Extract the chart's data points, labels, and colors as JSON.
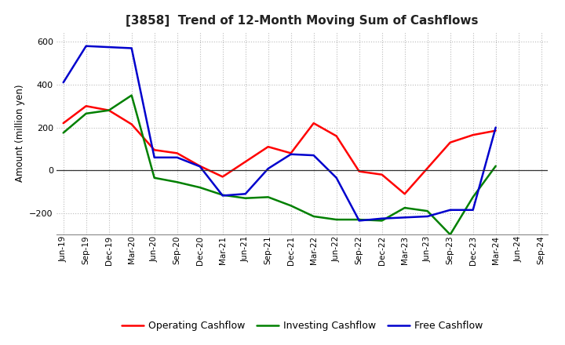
{
  "title": "[3858]  Trend of 12-Month Moving Sum of Cashflows",
  "ylabel": "Amount (million yen)",
  "ylim": [
    -300,
    650
  ],
  "yticks": [
    -200,
    0,
    200,
    400,
    600
  ],
  "background_color": "#ffffff",
  "grid_color": "#bbbbbb",
  "x_labels": [
    "Jun-19",
    "Sep-19",
    "Dec-19",
    "Mar-20",
    "Jun-20",
    "Sep-20",
    "Dec-20",
    "Mar-21",
    "Jun-21",
    "Sep-21",
    "Dec-21",
    "Mar-22",
    "Jun-22",
    "Sep-22",
    "Dec-22",
    "Mar-23",
    "Jun-23",
    "Sep-23",
    "Dec-23",
    "Mar-24",
    "Jun-24",
    "Sep-24"
  ],
  "operating_cashflow": [
    220,
    300,
    280,
    215,
    95,
    80,
    20,
    -30,
    40,
    110,
    80,
    220,
    160,
    -5,
    -20,
    -110,
    10,
    130,
    165,
    185,
    null,
    null
  ],
  "investing_cashflow": [
    175,
    265,
    280,
    350,
    -35,
    -55,
    -80,
    -115,
    -130,
    -125,
    -165,
    -215,
    -230,
    -230,
    -235,
    -175,
    -190,
    -300,
    -125,
    20,
    null,
    null
  ],
  "free_cashflow": [
    410,
    580,
    575,
    570,
    60,
    60,
    18,
    -118,
    -110,
    8,
    75,
    70,
    -35,
    -235,
    -225,
    -220,
    -215,
    -185,
    -185,
    200,
    null,
    null
  ],
  "op_color": "#ff0000",
  "inv_color": "#008000",
  "free_color": "#0000cd",
  "line_width": 1.8
}
